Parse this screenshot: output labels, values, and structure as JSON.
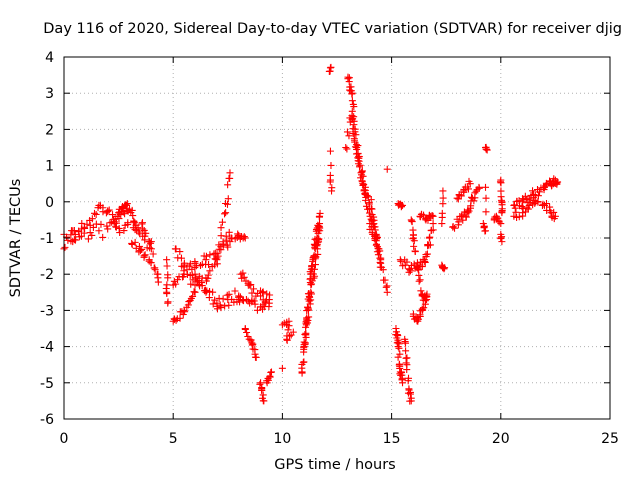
{
  "chart_data": {
    "type": "scatter",
    "title": "Day 116 of 2020, Sidereal Day-to-day VTEC variation (SDTVAR) for receiver djig",
    "xlabel": "GPS time / hours",
    "ylabel": "SDTVAR / TECUs",
    "xlim": [
      0,
      25
    ],
    "ylim": [
      -6,
      4
    ],
    "xticks": [
      0,
      5,
      10,
      15,
      20,
      25
    ],
    "yticks": [
      -6,
      -5,
      -4,
      -3,
      -2,
      -1,
      0,
      1,
      2,
      3,
      4
    ],
    "grid": true,
    "legend": "none",
    "marker": "plus",
    "color": "#ff0000",
    "series": [
      {
        "name": "SDTVAR",
        "segments": [
          {
            "points": [
              [
                0.0,
                -1.3
              ],
              [
                0.4,
                -1.1
              ],
              [
                0.8,
                -0.95
              ],
              [
                1.2,
                -0.85
              ],
              [
                1.6,
                -0.8
              ],
              [
                2.0,
                -0.75
              ],
              [
                2.4,
                -0.7
              ],
              [
                2.8,
                -0.65
              ],
              [
                3.2,
                -0.55
              ],
              [
                3.6,
                -0.75
              ],
              [
                4.0,
                -1.3
              ],
              [
                4.3,
                -2.1
              ]
            ],
            "jitter": 0.22,
            "density": 30
          },
          {
            "points": [
              [
                0.0,
                -0.9
              ],
              [
                0.4,
                -0.8
              ],
              [
                0.8,
                -0.75
              ],
              [
                1.2,
                -0.65
              ],
              [
                1.6,
                -0.1
              ],
              [
                2.0,
                -0.25
              ],
              [
                2.3,
                -0.55
              ]
            ],
            "jitter": 0.15,
            "density": 26
          },
          {
            "points": [
              [
                2.3,
                -0.6
              ],
              [
                2.6,
                -0.35
              ],
              [
                3.0,
                -0.2
              ],
              [
                3.3,
                -0.65
              ],
              [
                3.7,
                -0.95
              ],
              [
                4.0,
                -1.1
              ]
            ],
            "jitter": 0.12,
            "density": 24
          },
          {
            "points": [
              [
                2.5,
                -0.3
              ],
              [
                2.9,
                -0.05
              ]
            ],
            "jitter": 0.06,
            "density": 8
          },
          {
            "points": [
              [
                3.1,
                -1.15
              ],
              [
                3.5,
                -1.35
              ],
              [
                3.9,
                -1.6
              ],
              [
                4.3,
                -2.0
              ]
            ],
            "jitter": 0.1,
            "density": 14
          },
          {
            "points": [
              [
                4.7,
                -1.6
              ],
              [
                4.75,
                -2.1
              ],
              [
                4.7,
                -2.5
              ],
              [
                4.75,
                -2.8
              ]
            ],
            "jitter": 0.04,
            "density": 5
          },
          {
            "points": [
              [
                5.1,
                -1.3
              ],
              [
                5.5,
                -1.8
              ],
              [
                6.0,
                -2.3
              ],
              [
                6.5,
                -2.1
              ],
              [
                7.0,
                -1.6
              ],
              [
                7.3,
                -1.2
              ],
              [
                7.6,
                -1.0
              ]
            ],
            "jitter": 0.2,
            "density": 38
          },
          {
            "points": [
              [
                5.0,
                -2.3
              ],
              [
                5.5,
                -2.0
              ],
              [
                6.0,
                -1.7
              ],
              [
                6.5,
                -1.6
              ],
              [
                7.0,
                -1.55
              ],
              [
                7.4,
                -0.3
              ],
              [
                7.6,
                0.8
              ]
            ],
            "jitter": 0.15,
            "density": 36
          },
          {
            "points": [
              [
                5.0,
                -3.3
              ],
              [
                5.5,
                -3.0
              ],
              [
                6.0,
                -2.5
              ]
            ],
            "jitter": 0.1,
            "density": 16
          },
          {
            "points": [
              [
                6.0,
                -2.0
              ],
              [
                6.5,
                -2.5
              ],
              [
                7.0,
                -2.8
              ],
              [
                7.5,
                -2.7
              ],
              [
                8.0,
                -2.6
              ]
            ],
            "jitter": 0.18,
            "density": 28
          },
          {
            "points": [
              [
                7.6,
                -1.1
              ],
              [
                8.0,
                -0.95
              ],
              [
                8.3,
                -1.0
              ]
            ],
            "jitter": 0.08,
            "density": 10
          },
          {
            "points": [
              [
                8.1,
                -2.0
              ],
              [
                8.5,
                -2.3
              ],
              [
                9.0,
                -2.6
              ],
              [
                9.4,
                -2.7
              ]
            ],
            "jitter": 0.15,
            "density": 18
          },
          {
            "points": [
              [
                8.0,
                -2.7
              ],
              [
                8.5,
                -2.8
              ],
              [
                9.0,
                -2.9
              ],
              [
                9.4,
                -2.8
              ]
            ],
            "jitter": 0.12,
            "density": 18
          },
          {
            "points": [
              [
                8.3,
                -3.5
              ],
              [
                8.6,
                -3.9
              ],
              [
                8.8,
                -4.3
              ]
            ],
            "jitter": 0.08,
            "density": 12
          },
          {
            "points": [
              [
                9.0,
                -5.0
              ],
              [
                9.15,
                -5.5
              ]
            ],
            "jitter": 0.06,
            "density": 8
          },
          {
            "points": [
              [
                9.3,
                -5.0
              ],
              [
                9.5,
                -4.7
              ]
            ],
            "jitter": 0.06,
            "density": 6
          },
          {
            "points": [
              [
                10.0,
                -4.6
              ]
            ],
            "jitter": 0.0,
            "density": 1
          },
          {
            "points": [
              [
                10.0,
                -3.4
              ],
              [
                10.3,
                -3.3
              ],
              [
                10.2,
                -3.8
              ],
              [
                10.5,
                -3.6
              ]
            ],
            "jitter": 0.06,
            "density": 10
          },
          {
            "points": [
              [
                10.9,
                -4.7
              ],
              [
                11.1,
                -3.4
              ],
              [
                11.3,
                -2.0
              ],
              [
                11.5,
                -1.2
              ],
              [
                11.7,
                -0.4
              ]
            ],
            "jitter": 0.12,
            "density": 60
          },
          {
            "points": [
              [
                11.0,
                -4.0
              ],
              [
                11.3,
                -2.5
              ],
              [
                11.6,
                -1.3
              ],
              [
                11.7,
                -0.6
              ]
            ],
            "jitter": 0.1,
            "density": 40
          },
          {
            "points": [
              [
                12.15,
                3.6
              ],
              [
                12.2,
                3.7
              ]
            ],
            "jitter": 0.03,
            "density": 2
          },
          {
            "points": [
              [
                12.2,
                1.4
              ],
              [
                12.2,
                0.6
              ],
              [
                12.25,
                0.3
              ]
            ],
            "jitter": 0.03,
            "density": 4
          },
          {
            "points": [
              [
                13.0,
                3.4
              ],
              [
                13.2,
                3.0
              ],
              [
                13.4,
                1.5
              ],
              [
                13.6,
                0.8
              ],
              [
                13.8,
                0.2
              ],
              [
                14.1,
                -0.5
              ],
              [
                14.3,
                -1.0
              ]
            ],
            "jitter": 0.15,
            "density": 55
          },
          {
            "points": [
              [
                12.9,
                1.5
              ],
              [
                13.2,
                2.5
              ],
              [
                13.3,
                1.7
              ],
              [
                13.5,
                1.2
              ],
              [
                13.8,
                0.4
              ],
              [
                14.1,
                -0.2
              ],
              [
                14.3,
                -0.9
              ],
              [
                14.5,
                -1.6
              ]
            ],
            "jitter": 0.15,
            "density": 40
          },
          {
            "points": [
              [
                14.0,
                -0.6
              ],
              [
                14.3,
                -1.2
              ],
              [
                14.5,
                -1.7
              ],
              [
                14.8,
                -2.5
              ]
            ],
            "jitter": 0.12,
            "density": 20
          },
          {
            "points": [
              [
                14.8,
                0.9
              ]
            ],
            "jitter": 0.0,
            "density": 1
          },
          {
            "points": [
              [
                15.2,
                -3.5
              ],
              [
                15.3,
                -4.0
              ],
              [
                15.4,
                -4.7
              ],
              [
                15.5,
                -5.0
              ]
            ],
            "jitter": 0.12,
            "density": 24
          },
          {
            "points": [
              [
                15.6,
                -3.8
              ],
              [
                15.7,
                -4.5
              ],
              [
                15.8,
                -5.2
              ],
              [
                15.9,
                -5.5
              ]
            ],
            "jitter": 0.1,
            "density": 16
          },
          {
            "points": [
              [
                15.4,
                -1.6
              ],
              [
                15.8,
                -1.85
              ],
              [
                16.2,
                -1.8
              ],
              [
                16.5,
                -1.6
              ],
              [
                16.7,
                -1.2
              ],
              [
                16.9,
                -0.6
              ]
            ],
            "jitter": 0.12,
            "density": 28
          },
          {
            "points": [
              [
                15.3,
                -0.05
              ],
              [
                15.5,
                -0.1
              ]
            ],
            "jitter": 0.05,
            "density": 6
          },
          {
            "points": [
              [
                15.9,
                -0.5
              ],
              [
                16.0,
                -1.0
              ],
              [
                16.2,
                -1.8
              ],
              [
                16.4,
                -2.6
              ],
              [
                16.6,
                -2.7
              ]
            ],
            "jitter": 0.1,
            "density": 22
          },
          {
            "points": [
              [
                16.0,
                -3.1
              ],
              [
                16.2,
                -3.3
              ],
              [
                16.4,
                -3.0
              ],
              [
                16.6,
                -2.6
              ]
            ],
            "jitter": 0.1,
            "density": 14
          },
          {
            "points": [
              [
                16.3,
                -0.4
              ],
              [
                16.6,
                -0.45
              ],
              [
                16.9,
                -0.4
              ]
            ],
            "jitter": 0.08,
            "density": 12
          },
          {
            "points": [
              [
                17.3,
                -1.75
              ],
              [
                17.4,
                -1.85
              ]
            ],
            "jitter": 0.04,
            "density": 4
          },
          {
            "points": [
              [
                17.3,
                -0.6
              ],
              [
                17.35,
                0.3
              ]
            ],
            "jitter": 0.04,
            "density": 4
          },
          {
            "points": [
              [
                17.8,
                -0.7
              ],
              [
                18.2,
                -0.4
              ],
              [
                18.5,
                -0.3
              ],
              [
                18.7,
                0.1
              ],
              [
                19.0,
                0.4
              ]
            ],
            "jitter": 0.12,
            "density": 22
          },
          {
            "points": [
              [
                18.0,
                0.1
              ],
              [
                18.3,
                0.3
              ],
              [
                18.6,
                0.5
              ]
            ],
            "jitter": 0.08,
            "density": 10
          },
          {
            "points": [
              [
                19.2,
                -0.6
              ],
              [
                19.3,
                -0.8
              ],
              [
                19.3,
                0.4
              ]
            ],
            "jitter": 0.05,
            "density": 5
          },
          {
            "points": [
              [
                19.3,
                1.5
              ],
              [
                19.35,
                1.45
              ]
            ],
            "jitter": 0.03,
            "density": 3
          },
          {
            "points": [
              [
                19.7,
                -0.5
              ],
              [
                19.8,
                -0.4
              ],
              [
                20.0,
                -0.6
              ]
            ],
            "jitter": 0.05,
            "density": 6
          },
          {
            "points": [
              [
                20.0,
                0.6
              ],
              [
                20.05,
                0.0
              ],
              [
                20.05,
                -0.3
              ]
            ],
            "jitter": 0.05,
            "density": 10
          },
          {
            "points": [
              [
                20.0,
                -0.9
              ],
              [
                20.05,
                -1.1
              ]
            ],
            "jitter": 0.03,
            "density": 3
          },
          {
            "points": [
              [
                20.6,
                -0.1
              ],
              [
                21.0,
                0.0
              ],
              [
                21.5,
                0.2
              ],
              [
                22.0,
                0.4
              ],
              [
                22.5,
                0.6
              ]
            ],
            "jitter": 0.12,
            "density": 30
          },
          {
            "points": [
              [
                20.6,
                -0.4
              ],
              [
                21.0,
                -0.3
              ],
              [
                21.3,
                -0.1
              ],
              [
                21.6,
                0.0
              ],
              [
                22.0,
                -0.1
              ],
              [
                22.3,
                -0.3
              ],
              [
                22.5,
                -0.4
              ]
            ],
            "jitter": 0.1,
            "density": 24
          },
          {
            "points": [
              [
                22.3,
                0.5
              ],
              [
                22.6,
                0.55
              ]
            ],
            "jitter": 0.06,
            "density": 6
          }
        ]
      }
    ]
  }
}
